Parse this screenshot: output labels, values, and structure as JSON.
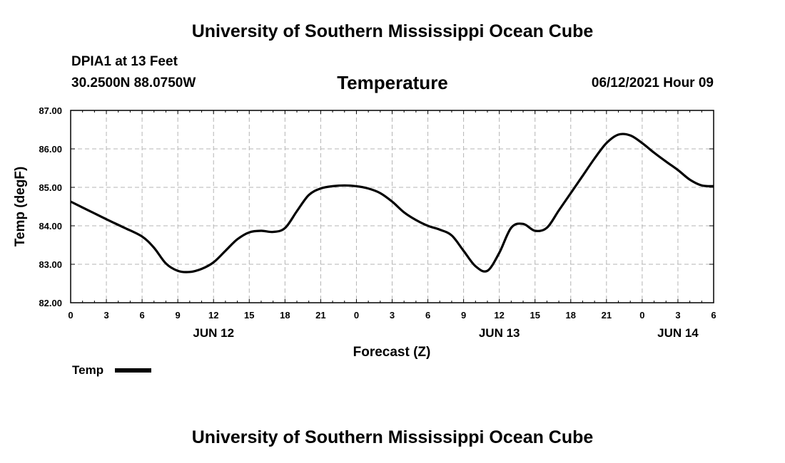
{
  "header": {
    "org_title": "University of Southern Mississippi Ocean Cube",
    "station": "DPIA1 at 13 Feet",
    "coords": "30.2500N  88.0750W",
    "datetime": "06/12/2021 Hour 09"
  },
  "footer": {
    "org_title": "University of Southern Mississippi Ocean Cube"
  },
  "colors": {
    "line": "#000000",
    "grid": "#b4b4b4"
  },
  "chart_data": {
    "type": "line",
    "title": "Temperature",
    "xlabel": "Forecast (Z)",
    "ylabel": "Temp (degF)",
    "ylim": [
      82,
      87
    ],
    "xlim": [
      0,
      54
    ],
    "grid": true,
    "x_tick_values": [
      0,
      3,
      6,
      9,
      12,
      15,
      18,
      21,
      24,
      27,
      30,
      33,
      36,
      39,
      42,
      45,
      48,
      51,
      54
    ],
    "x_tick_labels": [
      "0",
      "3",
      "6",
      "9",
      "12",
      "15",
      "18",
      "21",
      "0",
      "3",
      "6",
      "9",
      "12",
      "15",
      "18",
      "21",
      "0",
      "3",
      "6"
    ],
    "y_tick_values": [
      82,
      83,
      84,
      85,
      86,
      87
    ],
    "y_tick_labels": [
      "82.00",
      "83.00",
      "84.00",
      "85.00",
      "86.00",
      "87.00"
    ],
    "day_labels": [
      {
        "label": "JUN 12",
        "x": 12
      },
      {
        "label": "JUN 13",
        "x": 36
      },
      {
        "label": "JUN 14",
        "x": 51
      }
    ],
    "legend": {
      "position": "bottom-left",
      "entries": [
        "Temp"
      ]
    },
    "series": [
      {
        "name": "Temp",
        "x": [
          0,
          1.5,
          3,
          4.5,
          6,
          7,
          8,
          9,
          10,
          11,
          12,
          13,
          14,
          15,
          16,
          17,
          18,
          19,
          20,
          21,
          22,
          23,
          24,
          25,
          26,
          27,
          28,
          29,
          30,
          31,
          32,
          33,
          34,
          35,
          36,
          37,
          38,
          39,
          40,
          41,
          42,
          43,
          44,
          45,
          46,
          47,
          48,
          49,
          50,
          51,
          52,
          53,
          54
        ],
        "values": [
          84.63,
          84.4,
          84.17,
          83.95,
          83.72,
          83.43,
          83.02,
          82.83,
          82.8,
          82.88,
          83.05,
          83.35,
          83.65,
          83.83,
          83.87,
          83.84,
          83.94,
          84.38,
          84.8,
          84.97,
          85.03,
          85.05,
          85.03,
          84.97,
          84.85,
          84.63,
          84.35,
          84.15,
          84.0,
          83.9,
          83.75,
          83.35,
          82.95,
          82.83,
          83.3,
          83.95,
          84.05,
          83.87,
          83.95,
          84.4,
          84.85,
          85.3,
          85.75,
          86.15,
          86.37,
          86.35,
          86.15,
          85.9,
          85.67,
          85.45,
          85.2,
          85.05,
          85.03
        ]
      }
    ]
  }
}
